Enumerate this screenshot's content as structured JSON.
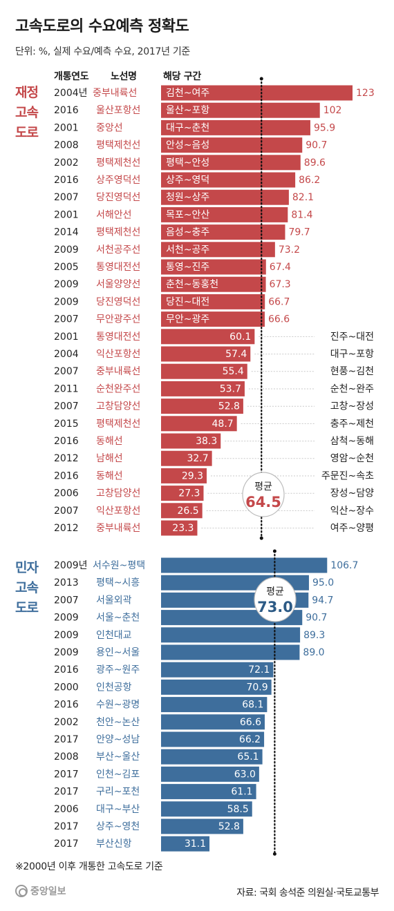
{
  "title": "고속도로의 수요예측 정확도",
  "subtitle": "단위: %, 실제 수요/예측 수요, 2017년 기준",
  "headers": {
    "year": "개통연도",
    "route": "노선명",
    "section": "해당 구간"
  },
  "footnote": "※2000년 이후 개통한 고속도로 기준",
  "source": "자료: 국회 송석준 의원실·국토교통부",
  "logo_text": "중앙일보",
  "colors": {
    "fiscal": "#c4484a",
    "private": "#3e6e9c",
    "fiscal_text": "#c4484a",
    "private_text": "#3e6e9c"
  },
  "chart_data": [
    {
      "type": "bar",
      "orientation": "horizontal",
      "section_label": "재정 고속 도로",
      "section_label_lines": [
        "재정",
        "고속",
        "도로"
      ],
      "average_label": "평균",
      "average": 64.5,
      "average_text": "64.5",
      "rows": [
        {
          "year": "2004년",
          "route": "중부내륙선",
          "section": "김천~여주",
          "value": 123,
          "label": "123"
        },
        {
          "year": "2016",
          "route": "울산포항선",
          "section": "울산~포항",
          "value": 102,
          "label": "102"
        },
        {
          "year": "2001",
          "route": "중앙선",
          "section": "대구~춘천",
          "value": 95.9,
          "label": "95.9"
        },
        {
          "year": "2008",
          "route": "평택제천선",
          "section": "안성~음성",
          "value": 90.7,
          "label": "90.7"
        },
        {
          "year": "2002",
          "route": "평택제천선",
          "section": "평택~안성",
          "value": 89.6,
          "label": "89.6"
        },
        {
          "year": "2016",
          "route": "상주영덕선",
          "section": "상주~영덕",
          "value": 86.2,
          "label": "86.2"
        },
        {
          "year": "2007",
          "route": "당진영덕선",
          "section": "청원~상주",
          "value": 82.1,
          "label": "82.1"
        },
        {
          "year": "2001",
          "route": "서해안선",
          "section": "목포~안산",
          "value": 81.4,
          "label": "81.4"
        },
        {
          "year": "2014",
          "route": "평택제천선",
          "section": "음성~충주",
          "value": 79.7,
          "label": "79.7"
        },
        {
          "year": "2009",
          "route": "서천공주선",
          "section": "서천~공주",
          "value": 73.2,
          "label": "73.2"
        },
        {
          "year": "2005",
          "route": "통영대전선",
          "section": "통영~진주",
          "value": 67.4,
          "label": "67.4"
        },
        {
          "year": "2009",
          "route": "서울양양선",
          "section": "춘천~동홍천",
          "value": 67.3,
          "label": "67.3"
        },
        {
          "year": "2009",
          "route": "당진영덕선",
          "section": "당진~대전",
          "value": 66.7,
          "label": "66.7"
        },
        {
          "year": "2007",
          "route": "무안광주선",
          "section": "무안~광주",
          "value": 66.6,
          "label": "66.6"
        },
        {
          "year": "2001",
          "route": "통영대전선",
          "section": "진주~대전",
          "value": 60.1,
          "label": "60.1"
        },
        {
          "year": "2004",
          "route": "익산포항선",
          "section": "대구~포항",
          "value": 57.4,
          "label": "57.4"
        },
        {
          "year": "2007",
          "route": "중부내륙선",
          "section": "현풍~김천",
          "value": 55.4,
          "label": "55.4"
        },
        {
          "year": "2011",
          "route": "순천완주선",
          "section": "순천~완주",
          "value": 53.7,
          "label": "53.7"
        },
        {
          "year": "2007",
          "route": "고창담양선",
          "section": "고창~장성",
          "value": 52.8,
          "label": "52.8"
        },
        {
          "year": "2015",
          "route": "평택제천선",
          "section": "충주~제천",
          "value": 48.7,
          "label": "48.7"
        },
        {
          "year": "2016",
          "route": "동해선",
          "section": "삼척~동해",
          "value": 38.3,
          "label": "38.3"
        },
        {
          "year": "2012",
          "route": "남해선",
          "section": "영암~순천",
          "value": 32.7,
          "label": "32.7"
        },
        {
          "year": "2016",
          "route": "동해선",
          "section": "주문진~속초",
          "value": 29.3,
          "label": "29.3"
        },
        {
          "year": "2006",
          "route": "고창담양선",
          "section": "장성~담양",
          "value": 27.3,
          "label": "27.3"
        },
        {
          "year": "2007",
          "route": "익산포항선",
          "section": "익산~장수",
          "value": 26.5,
          "label": "26.5"
        },
        {
          "year": "2012",
          "route": "중부내륙선",
          "section": "여주~양평",
          "value": 23.3,
          "label": "23.3"
        }
      ]
    },
    {
      "type": "bar",
      "orientation": "horizontal",
      "section_label": "민자 고속 도로",
      "section_label_lines": [
        "민자",
        "고속",
        "도로"
      ],
      "average_label": "평균",
      "average": 73.0,
      "average_text": "73.0",
      "rows": [
        {
          "year": "2009년",
          "route": "서수원~평택",
          "value": 106.7,
          "label": "106.7"
        },
        {
          "year": "2013",
          "route": "평택~시흥",
          "value": 95.0,
          "label": "95.0"
        },
        {
          "year": "2007",
          "route": "서울외곽",
          "value": 94.7,
          "label": "94.7"
        },
        {
          "year": "2009",
          "route": "서울~춘천",
          "value": 90.7,
          "label": "90.7"
        },
        {
          "year": "2009",
          "route": "인천대교",
          "value": 89.3,
          "label": "89.3"
        },
        {
          "year": "2009",
          "route": "용인~서울",
          "value": 89.0,
          "label": "89.0"
        },
        {
          "year": "2016",
          "route": "광주~원주",
          "value": 72.1,
          "label": "72.1"
        },
        {
          "year": "2000",
          "route": "인천공항",
          "value": 70.9,
          "label": "70.9"
        },
        {
          "year": "2016",
          "route": "수원~광명",
          "value": 68.1,
          "label": "68.1"
        },
        {
          "year": "2002",
          "route": "천안~논산",
          "value": 66.6,
          "label": "66.6"
        },
        {
          "year": "2017",
          "route": "안양~성남",
          "value": 66.2,
          "label": "66.2"
        },
        {
          "year": "2008",
          "route": "부산~울산",
          "value": 65.1,
          "label": "65.1"
        },
        {
          "year": "2017",
          "route": "인천~김포",
          "value": 63.0,
          "label": "63.0"
        },
        {
          "year": "2017",
          "route": "구리~포천",
          "value": 61.1,
          "label": "61.1"
        },
        {
          "year": "2006",
          "route": "대구~부산",
          "value": 58.5,
          "label": "58.5"
        },
        {
          "year": "2017",
          "route": "상주~영천",
          "value": 52.8,
          "label": "52.8"
        },
        {
          "year": "2017",
          "route": "부산신항",
          "value": 31.1,
          "label": "31.1"
        }
      ]
    }
  ]
}
